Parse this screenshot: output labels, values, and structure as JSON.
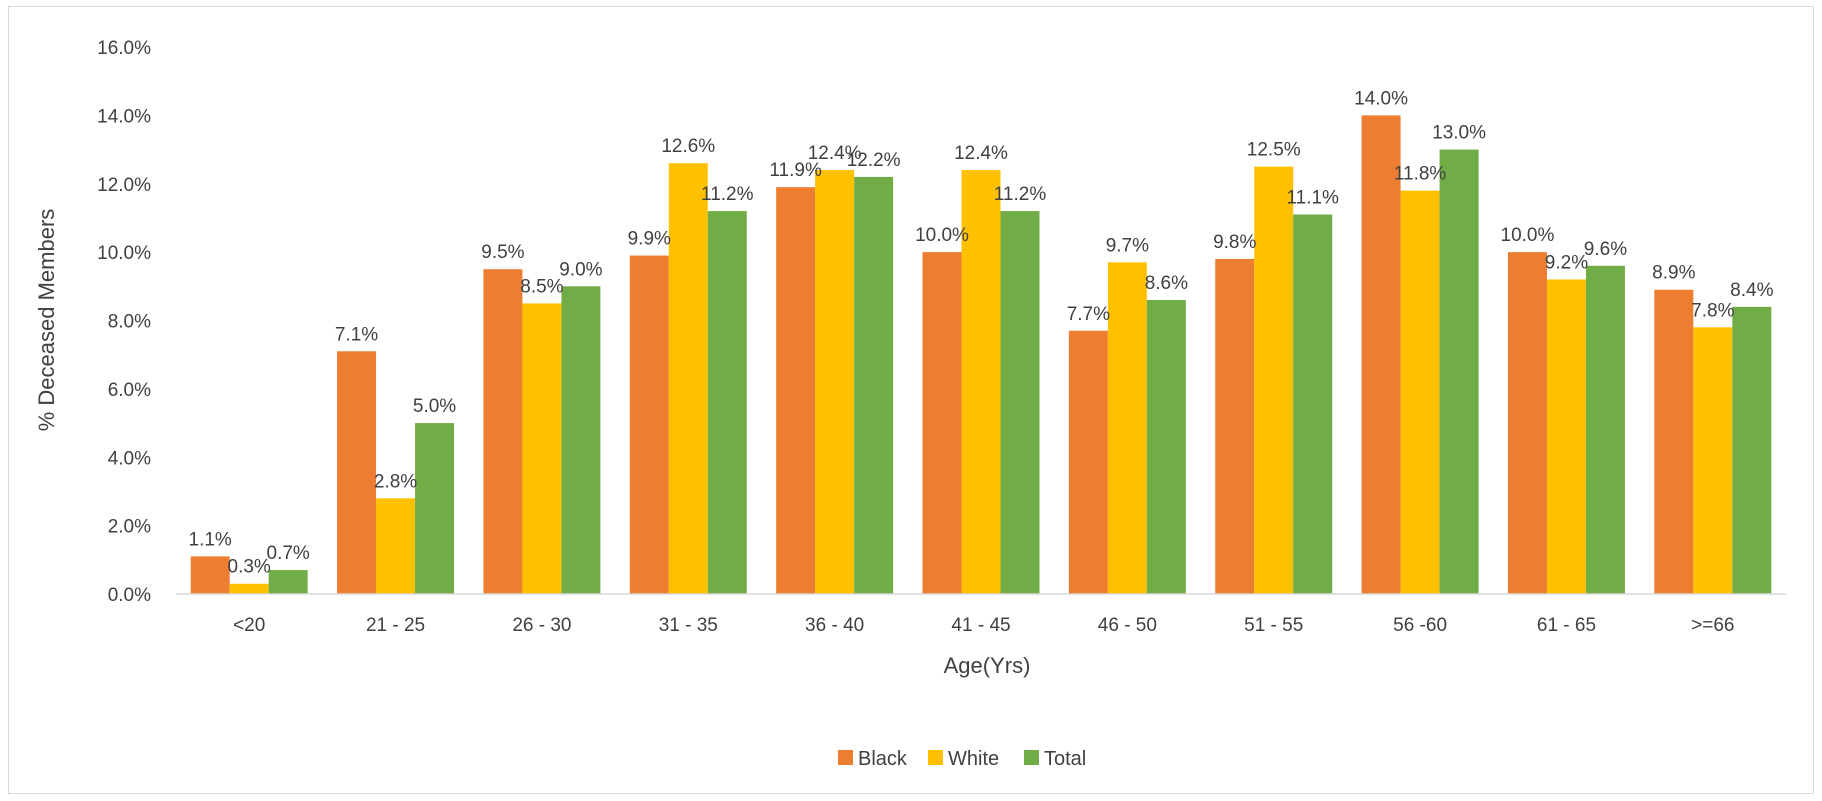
{
  "chart_data": {
    "type": "bar",
    "ylabel": "% Deceased Members",
    "xlabel": "Age(Yrs)",
    "ylim": [
      0,
      16
    ],
    "yticks": [
      "0.0%",
      "2.0%",
      "4.0%",
      "6.0%",
      "8.0%",
      "10.0%",
      "12.0%",
      "14.0%",
      "16.0%"
    ],
    "grid": false,
    "legend_position": "bottom",
    "categories": [
      "<20",
      "21 - 25",
      "26 - 30",
      "31 - 35",
      "36 - 40",
      "41 - 45",
      "46 - 50",
      "51 - 55",
      "56 -60",
      "61 - 65",
      ">=66"
    ],
    "series": [
      {
        "name": "Black",
        "color": "#ed7d31",
        "values": [
          1.1,
          7.1,
          9.5,
          9.9,
          11.9,
          10.0,
          7.7,
          9.8,
          14.0,
          10.0,
          8.9
        ],
        "labels": [
          "1.1%",
          "7.1%",
          "9.5%",
          "9.9%",
          "11.9%",
          "10.0%",
          "7.7%",
          "9.8%",
          "14.0%",
          "10.0%",
          "8.9%"
        ]
      },
      {
        "name": "White",
        "color": "#ffc000",
        "values": [
          0.3,
          2.8,
          8.5,
          12.6,
          12.4,
          12.4,
          9.7,
          12.5,
          11.8,
          9.2,
          7.8
        ],
        "labels": [
          "0.3%",
          "2.8%",
          "8.5%",
          "12.6%",
          "12.4%",
          "12.4%",
          "9.7%",
          "12.5%",
          "11.8%",
          "9.2%",
          "7.8%"
        ]
      },
      {
        "name": "Total",
        "color": "#70ad47",
        "values": [
          0.7,
          5.0,
          9.0,
          11.2,
          12.2,
          11.2,
          8.6,
          11.1,
          13.0,
          9.6,
          8.4
        ],
        "labels": [
          "0.7%",
          "5.0%",
          "9.0%",
          "11.2%",
          "12.2%",
          "11.2%",
          "8.6%",
          "11.1%",
          "13.0%",
          "9.6%",
          "8.4%"
        ]
      }
    ]
  }
}
